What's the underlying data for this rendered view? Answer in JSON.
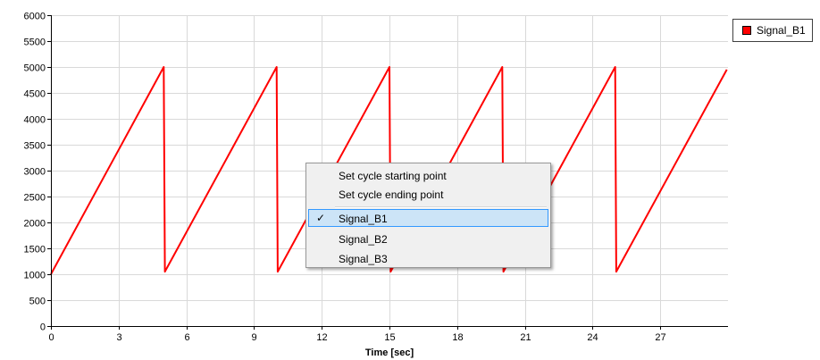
{
  "chart_data": {
    "type": "line",
    "title": "",
    "xlabel": "Time [sec]",
    "ylabel": "",
    "xlim": [
      0,
      30
    ],
    "ylim": [
      0,
      6000
    ],
    "x_ticks": [
      0,
      3,
      6,
      9,
      12,
      15,
      18,
      21,
      24,
      27
    ],
    "y_ticks": [
      0,
      500,
      1000,
      1500,
      2000,
      2500,
      3000,
      3500,
      4000,
      4500,
      5000,
      5500,
      6000
    ],
    "grid": true,
    "legend_position": "top-right",
    "series": [
      {
        "name": "Signal_B1",
        "color": "#ff0000",
        "x": [
          0,
          5,
          5.05,
          10,
          10.05,
          15,
          15.05,
          20,
          20.05,
          25,
          25.05,
          29.95
        ],
        "y": [
          1000,
          5000,
          1050,
          5000,
          1050,
          5000,
          1050,
          5000,
          1050,
          5000,
          1050,
          4950
        ]
      }
    ]
  },
  "legend": {
    "items": [
      {
        "label": "Signal_B1",
        "color": "#ff0000"
      }
    ]
  },
  "context_menu": {
    "items": [
      {
        "label": "Set cycle starting point",
        "checked": false,
        "selected": false
      },
      {
        "label": "Set cycle ending point",
        "checked": false,
        "selected": false
      },
      {
        "label": "Signal_B1",
        "checked": true,
        "selected": true,
        "check_icon": "✓"
      },
      {
        "label": "Signal_B2",
        "checked": false,
        "selected": false
      },
      {
        "label": "Signal_B3",
        "checked": false,
        "selected": false
      }
    ]
  }
}
